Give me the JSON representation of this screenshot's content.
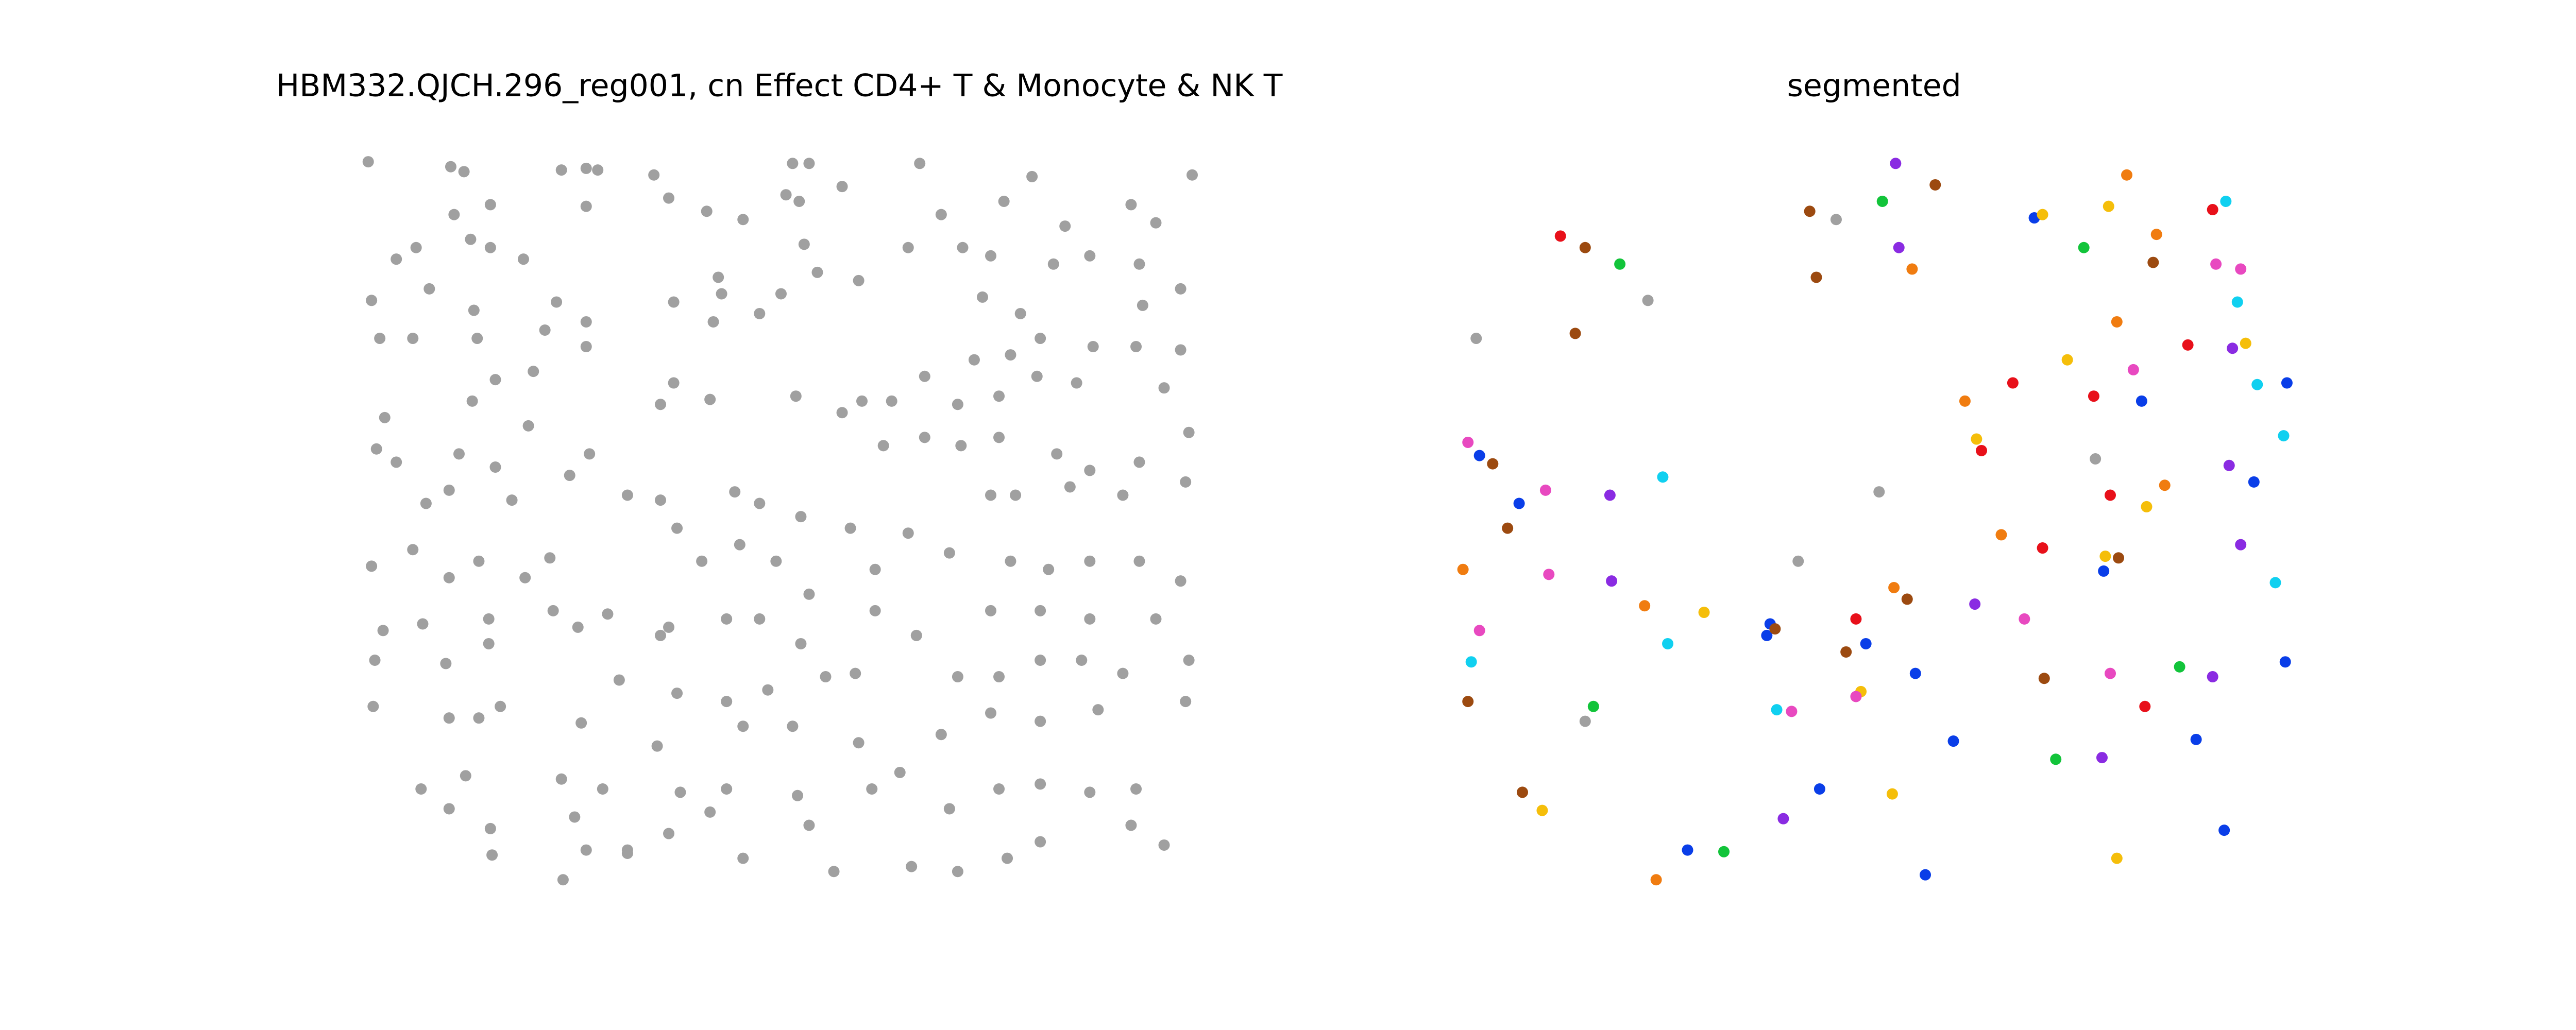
{
  "chart_data": [
    {
      "type": "scatter",
      "title": "HBM332.QJCH.296_reg001, cn Effect CD4+ T & Monocyte & NK T",
      "xlim": [
        215,
        730
      ],
      "ylim": [
        545,
        92
      ],
      "series": [
        {
          "color": "#a0a0a0",
          "x": [
            223,
            273,
            281,
            340,
            355,
            362,
            396,
            480,
            490,
            557,
            625,
            722,
            275,
            297,
            355,
            405,
            428,
            450,
            476,
            484,
            510,
            570,
            608,
            645,
            685,
            700,
            240,
            252,
            285,
            297,
            317,
            435,
            487,
            550,
            583,
            600,
            638,
            660,
            690,
            715,
            225,
            260,
            287,
            337,
            355,
            408,
            437,
            473,
            495,
            520,
            595,
            618,
            692,
            230,
            250,
            289,
            330,
            355,
            432,
            460,
            560,
            590,
            612,
            630,
            662,
            688,
            715,
            233,
            286,
            300,
            323,
            408,
            430,
            482,
            522,
            540,
            580,
            605,
            628,
            652,
            705,
            720,
            228,
            240,
            278,
            300,
            320,
            345,
            357,
            400,
            510,
            535,
            560,
            582,
            605,
            640,
            660,
            690,
            258,
            272,
            310,
            380,
            400,
            445,
            460,
            485,
            515,
            550,
            600,
            615,
            648,
            680,
            718,
            225,
            250,
            272,
            290,
            318,
            333,
            410,
            425,
            448,
            470,
            490,
            530,
            575,
            612,
            635,
            660,
            690,
            715,
            232,
            256,
            296,
            335,
            350,
            368,
            405,
            440,
            460,
            485,
            530,
            555,
            600,
            630,
            660,
            700,
            227,
            270,
            296,
            375,
            410,
            440,
            465,
            500,
            518,
            580,
            605,
            630,
            655,
            680,
            720,
            226,
            272,
            290,
            303,
            352,
            398,
            450,
            480,
            520,
            570,
            600,
            630,
            665,
            718,
            255,
            282,
            340,
            365,
            412,
            440,
            483,
            528,
            545,
            575,
            605,
            630,
            660,
            688,
            272,
            297,
            348,
            355,
            380,
            405,
            430,
            450,
            490,
            505,
            341,
            380,
            552,
            580,
            610,
            630,
            685,
            705,
            298,
            400
          ],
          "y": [
            98,
            101,
            104,
            103,
            102,
            103,
            106,
            99,
            99,
            99,
            107,
            106,
            130,
            124,
            125,
            120,
            128,
            133,
            118,
            122,
            113,
            130,
            122,
            137,
            124,
            135,
            157,
            150,
            145,
            150,
            157,
            168,
            148,
            150,
            150,
            155,
            160,
            155,
            160,
            175,
            182,
            175,
            188,
            183,
            195,
            183,
            178,
            178,
            165,
            170,
            180,
            190,
            185,
            205,
            205,
            205,
            200,
            210,
            195,
            190,
            228,
            218,
            215,
            205,
            210,
            210,
            212,
            253,
            243,
            230,
            225,
            232,
            242,
            240,
            243,
            243,
            245,
            240,
            228,
            232,
            235,
            262,
            272,
            280,
            275,
            283,
            258,
            288,
            275,
            245,
            250,
            270,
            265,
            270,
            265,
            275,
            285,
            280,
            305,
            297,
            303,
            300,
            303,
            298,
            305,
            313,
            320,
            323,
            300,
            300,
            295,
            300,
            292,
            343,
            333,
            350,
            340,
            350,
            338,
            320,
            340,
            330,
            340,
            360,
            345,
            335,
            340,
            345,
            340,
            340,
            352,
            382,
            378,
            375,
            370,
            380,
            372,
            380,
            375,
            375,
            390,
            370,
            385,
            370,
            370,
            375,
            375,
            400,
            402,
            390,
            412,
            420,
            425,
            418,
            410,
            408,
            410,
            410,
            400,
            400,
            408,
            400,
            428,
            435,
            435,
            428,
            438,
            452,
            440,
            440,
            450,
            445,
            432,
            437,
            430,
            425,
            478,
            470,
            472,
            478,
            480,
            478,
            482,
            478,
            468,
            490,
            478,
            475,
            480,
            478,
            490,
            502,
            495,
            515,
            515,
            505,
            492,
            520,
            500,
            528,
            533,
            517,
            525,
            528,
            520,
            510,
            500,
            512,
            518,
            385
          ]
        }
      ]
    },
    {
      "type": "scatter",
      "title": "segmented",
      "xlim": [
        875,
        1397
      ],
      "ylim": [
        545,
        92
      ],
      "series": [
        {
          "color": "#8a2be2",
          "x": [
            1148,
            1150,
            975,
            976,
            1196,
            1273,
            1080,
            1340,
            1350,
            1357,
            1352
          ],
          "y": [
            99,
            150,
            300,
            352,
            366,
            459,
            496,
            410,
            282,
            330,
            211
          ]
        },
        {
          "color": "#0a3ee8",
          "x": [
            896,
            920,
            1072,
            1130,
            1160,
            1183,
            1102,
            1166,
            1022,
            1297,
            1365,
            1385,
            1330,
            1347,
            1384,
            1232,
            1274,
            1070
          ],
          "y": [
            276,
            305,
            378,
            390,
            408,
            449,
            478,
            530,
            515,
            243,
            292,
            232,
            448,
            503,
            401,
            132,
            346,
            385
          ]
        },
        {
          "color": "#12c43a",
          "x": [
            1140,
            981,
            1262,
            965,
            1044,
            1245,
            1320
          ],
          "y": [
            122,
            160,
            150,
            428,
            516,
            460,
            404
          ]
        },
        {
          "color": "#9c4a10",
          "x": [
            1096,
            960,
            1100,
            1172,
            954,
            904,
            913,
            889,
            922,
            1155,
            1118,
            1238,
            1304,
            1283,
            1075
          ],
          "y": [
            128,
            150,
            168,
            112,
            202,
            281,
            320,
            425,
            480,
            363,
            395,
            411,
            159,
            338,
            381
          ]
        },
        {
          "color": "#e8101a",
          "x": [
            945,
            1340,
            1219,
            1268,
            1325,
            1200,
            1278,
            1237,
            1124,
            1299
          ],
          "y": [
            143,
            127,
            232,
            240,
            209,
            273,
            300,
            332,
            375,
            428
          ]
        },
        {
          "color": "#f07c10",
          "x": [
            1288,
            1158,
            1306,
            1282,
            1190,
            1311,
            1212,
            886,
            996,
            1147,
            1003
          ],
          "y": [
            106,
            163,
            142,
            195,
            243,
            294,
            324,
            345,
            367,
            356,
            533
          ]
        },
        {
          "color": "#f5be0a",
          "x": [
            1237,
            1277,
            1252,
            1360,
            1197,
            1300,
            1275,
            1032,
            1127,
            1146,
            934,
            1282
          ],
          "y": [
            130,
            125,
            218,
            208,
            266,
            307,
            337,
            371,
            419,
            481,
            491,
            520
          ]
        },
        {
          "color": "#e849c0",
          "x": [
            1357,
            1342,
            1292,
            889,
            936,
            938,
            896,
            1085,
            1226,
            1278,
            1124
          ],
          "y": [
            163,
            160,
            224,
            268,
            297,
            348,
            382,
            431,
            375,
            408,
            422
          ]
        },
        {
          "color": "#10d0f0",
          "x": [
            1348,
            1355,
            1367,
            1383,
            1007,
            1010,
            891,
            1076,
            1378
          ],
          "y": [
            122,
            183,
            233,
            264,
            289,
            390,
            401,
            430,
            353
          ]
        },
        {
          "color": "#a0a0a0",
          "x": [
            894,
            998,
            1112,
            1138,
            1089,
            1269,
            960
          ],
          "y": [
            205,
            182,
            133,
            298,
            340,
            278,
            437
          ]
        }
      ]
    }
  ]
}
